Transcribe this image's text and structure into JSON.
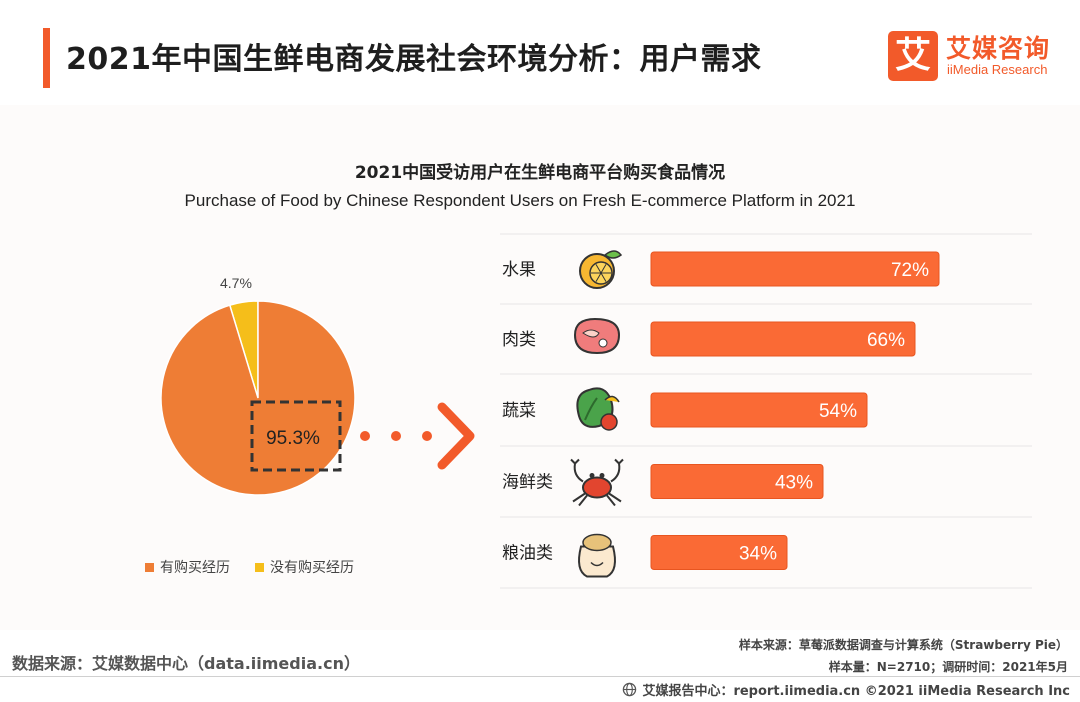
{
  "header": {
    "title": "2021年中国生鲜电商发展社会环境分析：用户需求"
  },
  "logo": {
    "mark": "艾",
    "name_cn": "艾媒咨询",
    "name_en": "iiMedia Research"
  },
  "colors": {
    "accent": "#f25a2a",
    "pie_main": "#ee7d35",
    "pie_minor": "#f5be1a",
    "bar": "#fa6a35"
  },
  "chart_data": [
    {
      "type": "pie",
      "title": "2021中国受访用户在生鲜电商平台购买食品情况",
      "subtitle": "Purchase of Food by Chinese Respondent Users on Fresh E-commerce Platform in 2021",
      "labels": [
        "有购买经历",
        "没有购买经历"
      ],
      "values": [
        95.3,
        4.7
      ],
      "value_labels": [
        "95.3%",
        "4.7%"
      ],
      "colors": [
        "#ee7d35",
        "#f5be1a"
      ],
      "legend_position": "bottom"
    },
    {
      "type": "bar",
      "orientation": "horizontal",
      "categories": [
        "水果",
        "肉类",
        "蔬菜",
        "海鲜类",
        "粮油类"
      ],
      "category_icons": [
        "fruit-icon",
        "meat-icon",
        "vegetable-icon",
        "crab-icon",
        "grain-sack-icon"
      ],
      "values": [
        72,
        66,
        54,
        43,
        34
      ],
      "value_labels": [
        "72%",
        "66%",
        "54%",
        "43%",
        "34%"
      ],
      "color": "#fa6a35"
    }
  ],
  "footer": {
    "source": "数据来源：艾媒数据中心（data.iimedia.cn）",
    "sample_source": "样本来源：草莓派数据调查与计算系统（Strawberry Pie）",
    "sample_size": "样本量：N=2710；调研时间：2021年5月",
    "report_center": "艾媒报告中心：report.iimedia.cn  ©2021  iiMedia Research  Inc"
  }
}
